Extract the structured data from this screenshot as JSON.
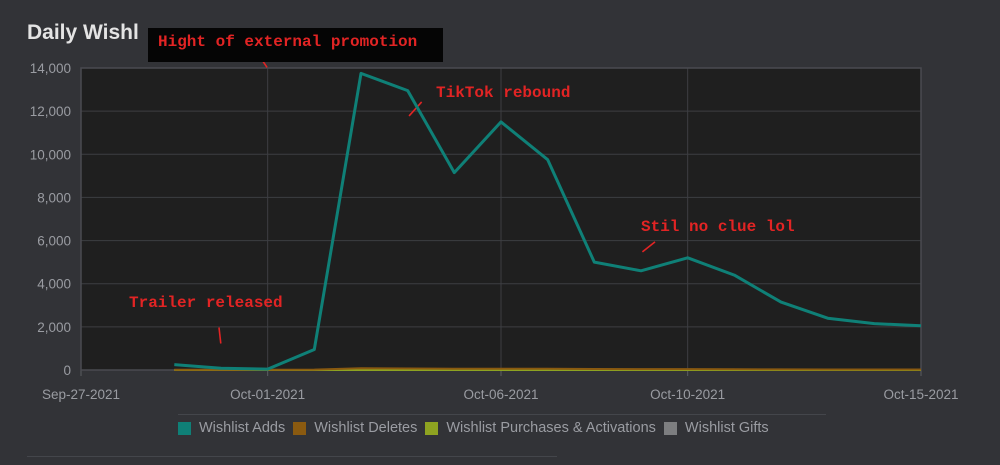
{
  "header": {
    "title": "Daily Wishl"
  },
  "colors": {
    "background": "#323337",
    "plot_background": "#1f1f1f",
    "grid": "#3d3e42",
    "wishlist_adds": "#0f8077",
    "wishlist_deletes": "#8a5a10",
    "wishlist_purchases": "#8ea321",
    "wishlist_gifts": "#7d7e80",
    "annotation": "#e22424"
  },
  "annotations": {
    "peak": "Hight of external promotion",
    "tiktok": "TikTok rebound",
    "clue": "Stil no clue lol",
    "trailer": "Trailer released"
  },
  "chart_data": {
    "type": "line",
    "title": "",
    "xlabel": "",
    "ylabel": "",
    "ylim": [
      0,
      14000
    ],
    "yticks": [
      "14,000",
      "12,000",
      "10,000",
      "8,000",
      "6,000",
      "4,000",
      "2,000",
      "0"
    ],
    "xticks": [
      "Sep-27-2021",
      "Oct-01-2021",
      "Oct-06-2021",
      "Oct-10-2021",
      "Oct-15-2021"
    ],
    "x": [
      "2021-09-29",
      "2021-09-30",
      "2021-10-01",
      "2021-10-02",
      "2021-10-03",
      "2021-10-04",
      "2021-10-05",
      "2021-10-06",
      "2021-10-07",
      "2021-10-08",
      "2021-10-09",
      "2021-10-10",
      "2021-10-11",
      "2021-10-12",
      "2021-10-13",
      "2021-10-14",
      "2021-10-15"
    ],
    "series": [
      {
        "name": "Wishlist Adds",
        "color": "#0f8077",
        "values": [
          250,
          80,
          40,
          950,
          13750,
          12950,
          9150,
          11500,
          9750,
          5000,
          4600,
          5200,
          4400,
          3150,
          2400,
          2150,
          2050
        ]
      },
      {
        "name": "Wishlist Deletes",
        "color": "#8a5a10",
        "values": [
          10,
          10,
          10,
          20,
          80,
          70,
          60,
          60,
          55,
          45,
          40,
          40,
          35,
          30,
          25,
          25,
          25
        ]
      },
      {
        "name": "Wishlist Purchases & Activations",
        "color": "#8ea321",
        "values": [
          0,
          0,
          0,
          0,
          0,
          0,
          0,
          0,
          0,
          0,
          0,
          0,
          0,
          0,
          0,
          0,
          0
        ]
      },
      {
        "name": "Wishlist Gifts",
        "color": "#7d7e80",
        "values": [
          0,
          0,
          0,
          0,
          0,
          0,
          0,
          0,
          0,
          0,
          0,
          0,
          0,
          0,
          0,
          0,
          0
        ]
      }
    ],
    "grid": true,
    "legend_position": "bottom"
  }
}
